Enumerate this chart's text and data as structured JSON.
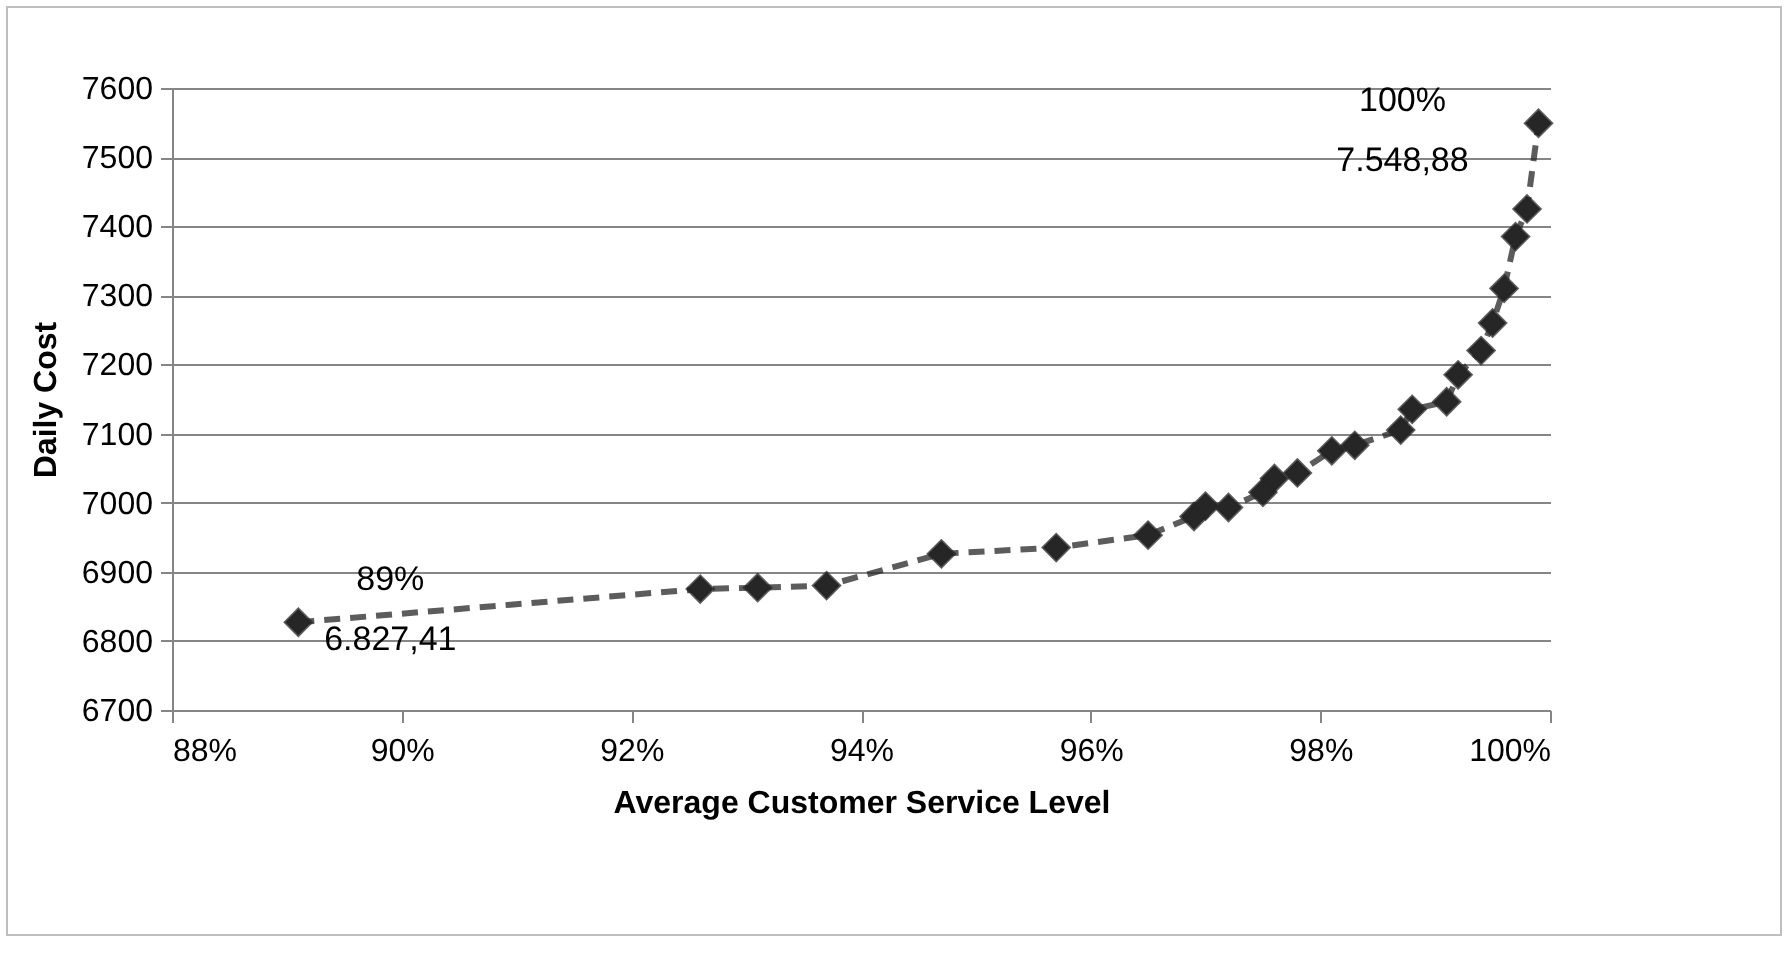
{
  "chart_data": {
    "type": "line",
    "xlabel": "Average Customer Service Level",
    "ylabel": "Daily Cost",
    "x": [
      89.1,
      92.6,
      93.1,
      93.7,
      94.7,
      95.7,
      96.5,
      96.9,
      97.0,
      97.2,
      97.5,
      97.6,
      97.8,
      98.1,
      98.3,
      98.7,
      98.8,
      99.1,
      99.2,
      99.4,
      99.5,
      99.6,
      99.7,
      99.8,
      99.9
    ],
    "series": [
      {
        "color": "#262626",
        "values": [
          6827,
          6875,
          6877,
          6880,
          6926,
          6935,
          6953,
          6980,
          6995,
          6993,
          7015,
          7035,
          7043,
          7075,
          7083,
          7105,
          7135,
          7146,
          7185,
          7220,
          7260,
          7310,
          7385,
          7425,
          7549
        ]
      }
    ],
    "xlim": [
      88,
      100
    ],
    "xticks": [
      {
        "value": 88,
        "label": "88%"
      },
      {
        "value": 90,
        "label": "90%"
      },
      {
        "value": 92,
        "label": "92%"
      },
      {
        "value": 94,
        "label": "94%"
      },
      {
        "value": 96,
        "label": "96%"
      },
      {
        "value": 98,
        "label": "98%"
      },
      {
        "value": 100,
        "label": "100%"
      }
    ],
    "ylim": [
      6700,
      7600
    ],
    "yticks": [
      6700,
      6800,
      6900,
      7000,
      7100,
      7200,
      7300,
      7400,
      7500,
      7600
    ],
    "grid": "y",
    "marker": "diamond",
    "line_style": "dashed",
    "annotations": [
      {
        "text": "89%\n6.827,41",
        "x": 89.1,
        "y": 6827
      },
      {
        "text": "100%\n7.548,88",
        "x": 99.9,
        "y": 7549
      }
    ]
  }
}
